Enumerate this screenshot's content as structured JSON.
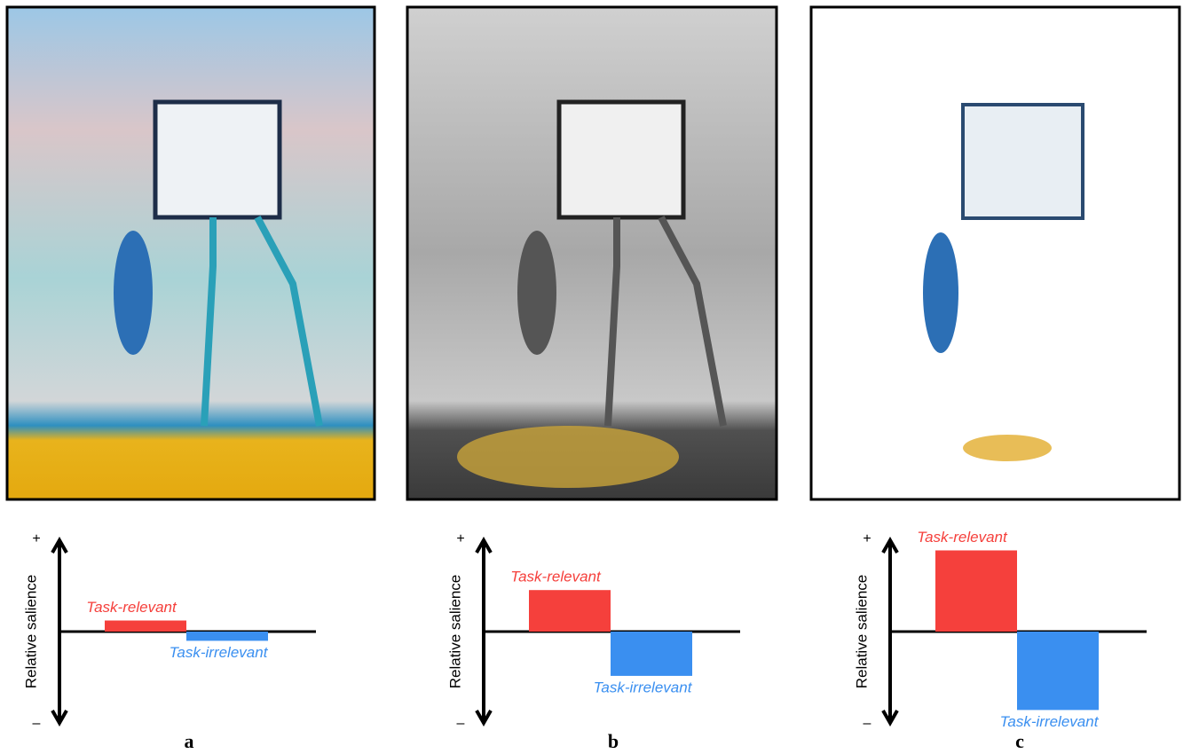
{
  "chart_data": [
    {
      "type": "bar",
      "caption": "a",
      "ylabel": "Relative salience",
      "ylim": [
        -1,
        1
      ],
      "yticks": [
        {
          "value": 1,
          "label": "+"
        },
        {
          "value": -1,
          "label": "–"
        }
      ],
      "series": [
        {
          "name": "Task-relevant",
          "color": "#f5403c",
          "values": [
            0.12
          ]
        },
        {
          "name": "Task-irrelevant",
          "color": "#3a8ff0",
          "values": [
            -0.1
          ]
        }
      ]
    },
    {
      "type": "bar",
      "caption": "b",
      "ylabel": "Relative salience",
      "ylim": [
        -1,
        1
      ],
      "yticks": [
        {
          "value": 1,
          "label": "+"
        },
        {
          "value": -1,
          "label": "–"
        }
      ],
      "series": [
        {
          "name": "Task-relevant",
          "color": "#f5403c",
          "values": [
            0.45
          ]
        },
        {
          "name": "Task-irrelevant",
          "color": "#3a8ff0",
          "values": [
            -0.48
          ]
        }
      ]
    },
    {
      "type": "bar",
      "caption": "c",
      "ylabel": "Relative salience",
      "ylim": [
        -1,
        1
      ],
      "yticks": [
        {
          "value": 1,
          "label": "+"
        },
        {
          "value": -1,
          "label": "–"
        }
      ],
      "series": [
        {
          "name": "Task-relevant",
          "color": "#f5403c",
          "values": [
            0.88
          ]
        },
        {
          "name": "Task-irrelevant",
          "color": "#3a8ff0",
          "values": [
            -0.85
          ]
        }
      ]
    }
  ]
}
